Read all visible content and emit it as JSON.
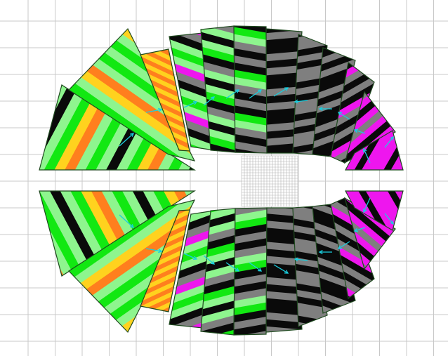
{
  "colors": {
    "background": "#ffffff",
    "grid_line": "#c8c8c8",
    "mesh_line": "#b4b4b4",
    "outline": "#1f4a1f",
    "light_green": "#8ef58e",
    "bright_green": "#12e812",
    "black": "#0a0a0a",
    "gray": "#7f7f7f",
    "magenta": "#ee16ee",
    "yellow": "#ffd21e",
    "orange": "#ff7f1e",
    "red": "#ff3c1e",
    "arrow": "#19cfe0"
  },
  "legend": {
    "band_palette_names": [
      "light-green",
      "bright-green",
      "black",
      "gray",
      "magenta",
      "yellow",
      "orange"
    ]
  },
  "view": {
    "description_visible_text": ""
  }
}
